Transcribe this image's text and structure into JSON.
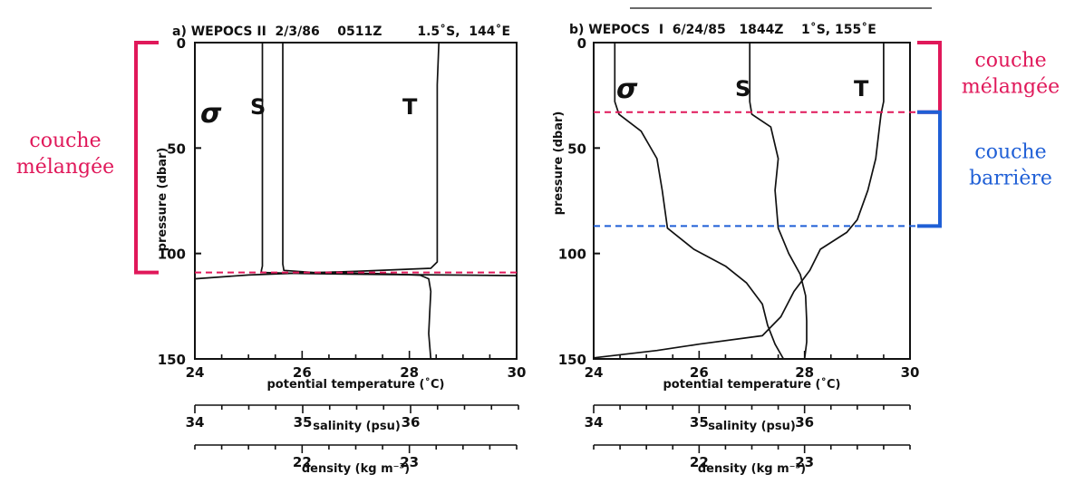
{
  "colors": {
    "mixed": "#e0185a",
    "barrier": "#1f5fd6",
    "ink": "#111111"
  },
  "chart_data": [
    {
      "type": "line",
      "title": "a) WEPOCS II  2/3/86    0511Z        1.5˚S,  144˚E",
      "ylabel": "pressure (dbar)",
      "ylim": [
        0,
        150
      ],
      "yticks": [
        "0",
        "50",
        "100",
        "150"
      ],
      "axes": [
        {
          "label": "potential temperature (˚C)",
          "range": [
            24,
            30
          ],
          "ticks": [
            "24",
            "26",
            "28",
            "30"
          ]
        },
        {
          "label": "salinity (psu)",
          "range": [
            34,
            37
          ],
          "ticks": [
            "34",
            "35",
            "36"
          ]
        },
        {
          "label": "density (kg m⁻³)",
          "range": [
            21,
            24
          ],
          "ticks": [
            "22",
            "23"
          ]
        }
      ],
      "series": [
        {
          "name": "σ",
          "axis": 2,
          "points": [
            [
              21.63,
              0
            ],
            [
              21.63,
              106
            ],
            [
              21.62,
              108
            ],
            [
              21.62,
              109
            ],
            [
              22.0,
              109.5
            ],
            [
              22.8,
              110
            ],
            [
              23.6,
              110.3
            ],
            [
              24.0,
              110.5
            ]
          ]
        },
        {
          "name": "S",
          "axis": 1,
          "points": [
            [
              34.82,
              0
            ],
            [
              34.82,
              105
            ],
            [
              34.83,
              108
            ],
            [
              35.1,
              109
            ],
            [
              35.7,
              109.5
            ],
            [
              36.1,
              110.3
            ],
            [
              36.18,
              112
            ],
            [
              36.2,
              118
            ],
            [
              36.19,
              128
            ],
            [
              36.18,
              138
            ],
            [
              36.2,
              150
            ]
          ]
        },
        {
          "name": "T",
          "axis": 0,
          "points": [
            [
              28.55,
              0
            ],
            [
              28.52,
              20
            ],
            [
              28.52,
              60
            ],
            [
              28.52,
              104
            ],
            [
              28.4,
              107
            ],
            [
              27.0,
              108.5
            ],
            [
              26.0,
              109.2
            ],
            [
              25.0,
              110.2
            ],
            [
              24.0,
              112
            ]
          ]
        }
      ],
      "annotations": [
        {
          "text": "couche mélangée",
          "color": "mixed",
          "from": 0,
          "to": 109,
          "side": "left"
        }
      ]
    },
    {
      "type": "line",
      "title": "b) WEPOCS  I  6/24/85   1844Z    1˚S, 155˚E",
      "ylabel": "pressure (dbar)",
      "ylim": [
        0,
        150
      ],
      "yticks": [
        "0",
        "50",
        "100",
        "150"
      ],
      "axes": [
        {
          "label": "potential temperature (˚C)",
          "range": [
            24,
            30
          ],
          "ticks": [
            "24",
            "26",
            "28",
            "30"
          ]
        },
        {
          "label": "salinity (psu)",
          "range": [
            34,
            37
          ],
          "ticks": [
            "34",
            "35",
            "36"
          ]
        },
        {
          "label": "density (kg m⁻³)",
          "range": [
            21,
            24
          ],
          "ticks": [
            "22",
            "23"
          ]
        }
      ],
      "series": [
        {
          "name": "σ",
          "axis": 2,
          "points": [
            [
              21.2,
              0
            ],
            [
              21.2,
              28
            ],
            [
              21.24,
              34
            ],
            [
              21.45,
              42
            ],
            [
              21.6,
              55
            ],
            [
              21.65,
              70
            ],
            [
              21.7,
              88
            ],
            [
              21.95,
              98
            ],
            [
              22.25,
              106
            ],
            [
              22.45,
              114
            ],
            [
              22.6,
              124
            ],
            [
              22.65,
              134
            ],
            [
              22.72,
              143
            ],
            [
              22.8,
              150
            ]
          ]
        },
        {
          "name": "S",
          "axis": 1,
          "points": [
            [
              35.48,
              0
            ],
            [
              35.48,
              28
            ],
            [
              35.5,
              34
            ],
            [
              35.68,
              40
            ],
            [
              35.75,
              55
            ],
            [
              35.72,
              70
            ],
            [
              35.75,
              88
            ],
            [
              35.85,
              100
            ],
            [
              35.96,
              110
            ],
            [
              36.01,
              120
            ],
            [
              36.02,
              132
            ],
            [
              36.02,
              142
            ],
            [
              36.0,
              150
            ]
          ]
        },
        {
          "name": "T",
          "axis": 0,
          "points": [
            [
              29.5,
              0
            ],
            [
              29.5,
              28
            ],
            [
              29.45,
              34
            ],
            [
              29.42,
              40
            ],
            [
              29.35,
              55
            ],
            [
              29.2,
              70
            ],
            [
              29.0,
              84
            ],
            [
              28.8,
              90
            ],
            [
              28.3,
              98
            ],
            [
              28.1,
              108
            ],
            [
              27.8,
              118
            ],
            [
              27.55,
              130
            ],
            [
              27.2,
              139
            ],
            [
              26.0,
              143
            ],
            [
              25.2,
              146
            ],
            [
              24.0,
              149.5
            ]
          ]
        }
      ],
      "annotations": [
        {
          "text": "couche mélangée",
          "color": "mixed",
          "from": 0,
          "to": 33,
          "side": "right"
        },
        {
          "text": "couche barrière",
          "color": "barrier",
          "from": 33,
          "to": 87,
          "side": "right"
        }
      ]
    }
  ],
  "labels": {
    "a": {
      "sigma": "σ",
      "s": "S",
      "t": "T"
    },
    "b": {
      "sigma": "σ",
      "s": "S",
      "t": "T"
    }
  }
}
